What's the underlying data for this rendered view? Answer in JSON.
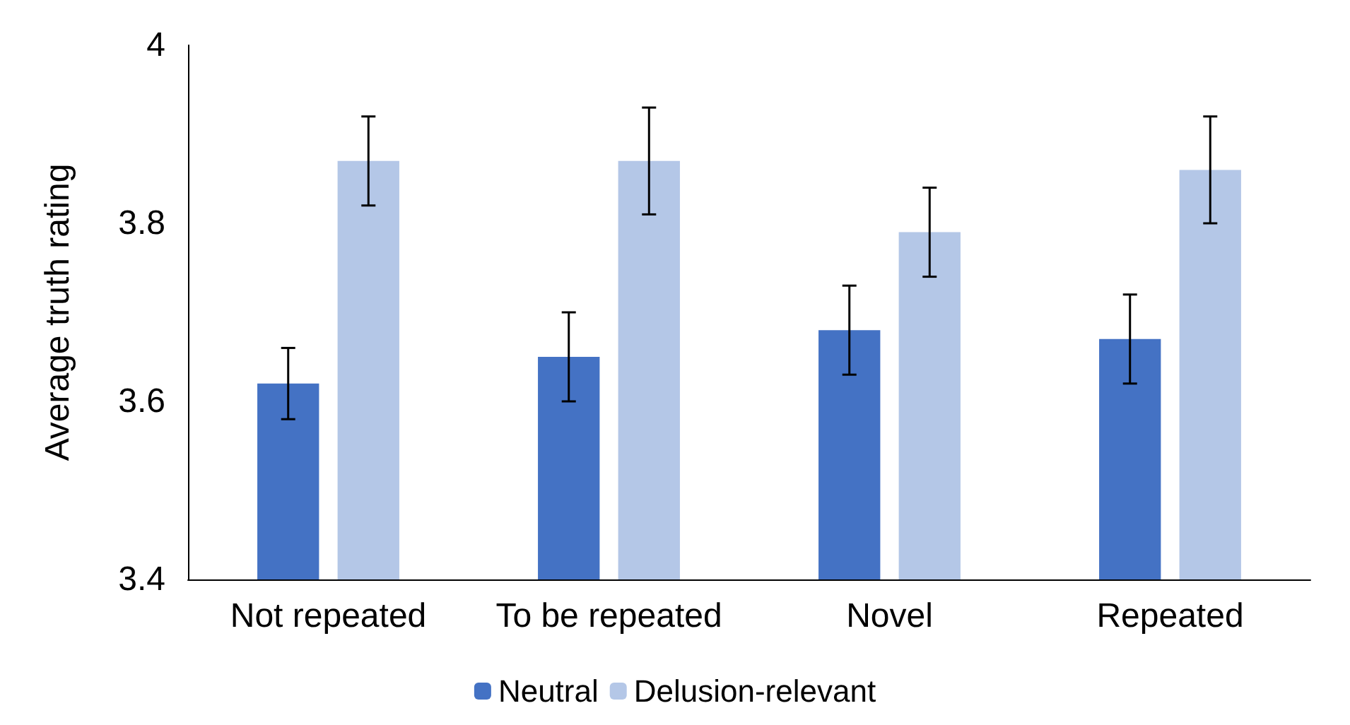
{
  "chart_data": {
    "type": "bar",
    "ylabel": "Average truth rating",
    "categories": [
      "Not repeated",
      "To be repeated",
      "Novel",
      "Repeated"
    ],
    "series": [
      {
        "name": "Neutral",
        "color": "#4472c4",
        "values": [
          3.62,
          3.65,
          3.68,
          3.67
        ],
        "errors": [
          0.04,
          0.05,
          0.05,
          0.05
        ]
      },
      {
        "name": "Delusion-relevant",
        "color": "#b4c7e7",
        "values": [
          3.87,
          3.87,
          3.79,
          3.86
        ],
        "errors": [
          0.05,
          0.06,
          0.05,
          0.06
        ]
      }
    ],
    "ylim": [
      3.4,
      4
    ],
    "yticks": [
      3.4,
      3.6,
      3.8,
      4
    ],
    "grid": false,
    "legend": "bottom"
  }
}
